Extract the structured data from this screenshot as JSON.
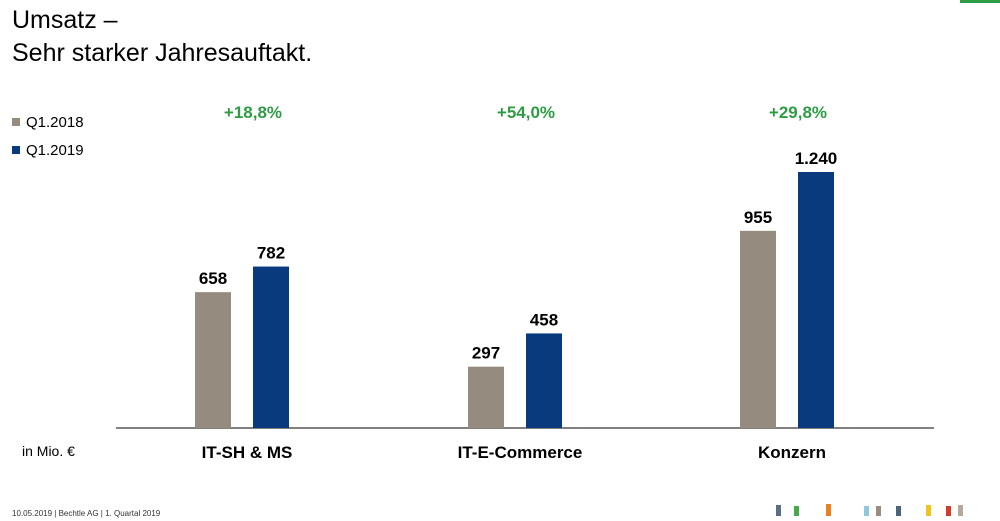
{
  "title_line1": "Umsatz –",
  "title_line2": "Sehr starker Jahresauftakt.",
  "unit_label": "in Mio. €",
  "footer_text": "10.05.2019 | Bechtle AG | 1. Quartal 2019",
  "colors": {
    "q2018": "#968b7f",
    "q2019": "#0a3a7e",
    "growth": "#2e9c45",
    "accent": "#2e9c45"
  },
  "chart_data": {
    "type": "bar",
    "categories": [
      "IT-SH & MS",
      "IT-E-Commerce",
      "Konzern"
    ],
    "series": [
      {
        "name": "Q1.2018",
        "values": [
          658,
          297,
          955
        ],
        "labels": [
          "658",
          "297",
          "955"
        ]
      },
      {
        "name": "Q1.2019",
        "values": [
          782,
          458,
          1240
        ],
        "labels": [
          "782",
          "458",
          "1.240"
        ]
      }
    ],
    "growth_labels": [
      "+18,8%",
      "+54,0%",
      "+29,8%"
    ],
    "ylim": [
      0,
      1240
    ],
    "legend_position": "top-left",
    "grid": false
  },
  "brand_marks": [
    "#5a6f82",
    "#4aa84a",
    "#e8821e",
    "#8fc7dd",
    "#9a8d80",
    "#4a6478",
    "#f0c419",
    "#d43b2b",
    "#b3a99c"
  ]
}
